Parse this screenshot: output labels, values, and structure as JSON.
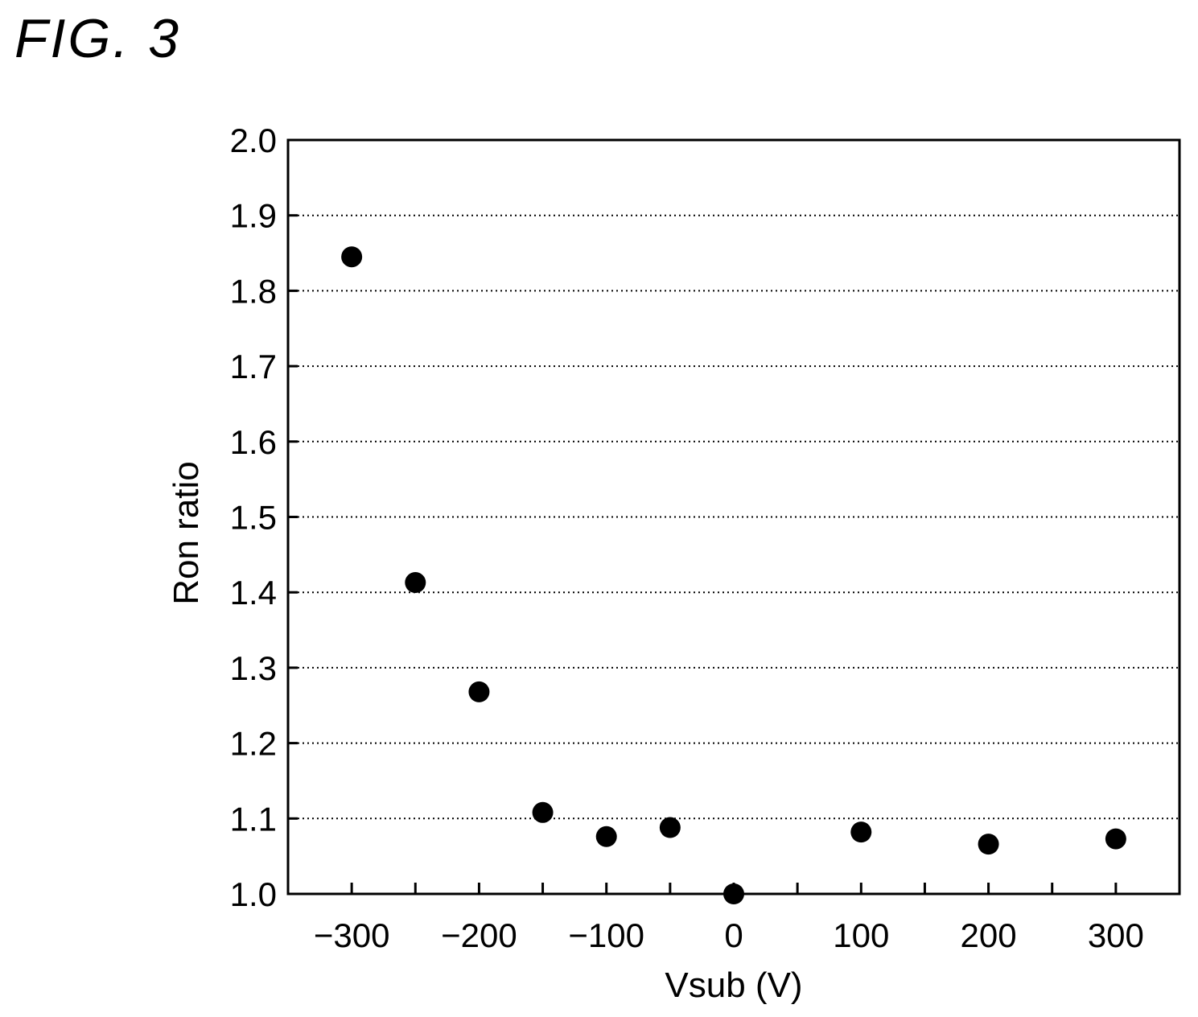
{
  "figure_label": "FIG. 3",
  "chart_data": {
    "type": "scatter",
    "xlabel": "Vsub (V)",
    "ylabel": "Ron ratio",
    "xlim": [
      -350,
      350
    ],
    "ylim": [
      1.0,
      2.0
    ],
    "x_ticks": [
      -300,
      -200,
      -100,
      0,
      100,
      200,
      300
    ],
    "x_tick_labels": [
      "−300",
      "−200",
      "−100",
      "0",
      "100",
      "200",
      "300"
    ],
    "x_minor_ticks": [
      -250,
      -150,
      -50,
      50,
      150,
      250
    ],
    "y_ticks": [
      1.0,
      1.1,
      1.2,
      1.3,
      1.4,
      1.5,
      1.6,
      1.7,
      1.8,
      1.9,
      2.0
    ],
    "y_tick_labels": [
      "1.0",
      "1.1",
      "1.2",
      "1.3",
      "1.4",
      "1.5",
      "1.6",
      "1.7",
      "1.8",
      "1.9",
      "2.0"
    ],
    "grid": "horizontal dotted",
    "marker_color": "#000000",
    "points": [
      {
        "x": -300,
        "y": 1.845
      },
      {
        "x": -250,
        "y": 1.413
      },
      {
        "x": -200,
        "y": 1.268
      },
      {
        "x": -150,
        "y": 1.108
      },
      {
        "x": -100,
        "y": 1.076
      },
      {
        "x": -50,
        "y": 1.088
      },
      {
        "x": 0,
        "y": 1.0
      },
      {
        "x": 100,
        "y": 1.082
      },
      {
        "x": 200,
        "y": 1.066
      },
      {
        "x": 300,
        "y": 1.073
      }
    ]
  }
}
